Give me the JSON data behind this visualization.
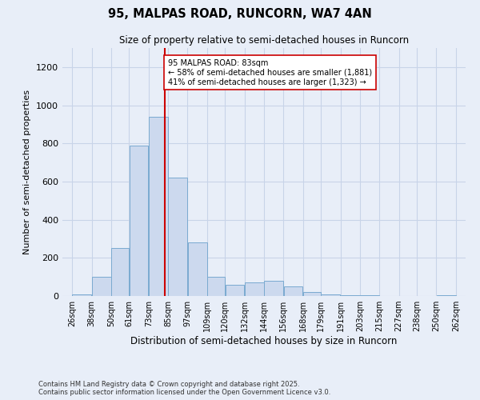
{
  "title1": "95, MALPAS ROAD, RUNCORN, WA7 4AN",
  "title2": "Size of property relative to semi-detached houses in Runcorn",
  "xlabel": "Distribution of semi-detached houses by size in Runcorn",
  "ylabel": "Number of semi-detached properties",
  "annotation_title": "95 MALPAS ROAD: 83sqm",
  "annotation_line1": "← 58% of semi-detached houses are smaller (1,881)",
  "annotation_line2": "41% of semi-detached houses are larger (1,323) →",
  "footnote1": "Contains HM Land Registry data © Crown copyright and database right 2025.",
  "footnote2": "Contains public sector information licensed under the Open Government Licence v3.0.",
  "property_size": 83,
  "bar_left_edges": [
    26,
    38,
    50,
    61,
    73,
    85,
    97,
    109,
    120,
    132,
    144,
    156,
    168,
    179,
    191,
    203,
    215,
    227,
    238,
    250
  ],
  "bar_widths": [
    12,
    12,
    11,
    12,
    12,
    12,
    12,
    11,
    12,
    12,
    12,
    12,
    11,
    12,
    12,
    12,
    12,
    11,
    12,
    12
  ],
  "bar_heights": [
    10,
    100,
    250,
    790,
    940,
    620,
    280,
    100,
    60,
    70,
    80,
    50,
    20,
    10,
    5,
    5,
    0,
    0,
    0,
    5
  ],
  "bin_labels": [
    "26sqm",
    "38sqm",
    "50sqm",
    "61sqm",
    "73sqm",
    "85sqm",
    "97sqm",
    "109sqm",
    "120sqm",
    "132sqm",
    "144sqm",
    "156sqm",
    "168sqm",
    "179sqm",
    "191sqm",
    "203sqm",
    "215sqm",
    "227sqm",
    "238sqm",
    "250sqm",
    "262sqm"
  ],
  "bar_color": "#ccd9ee",
  "bar_edge_color": "#7aaad0",
  "vline_x": 83,
  "vline_color": "#cc0000",
  "annotation_box_color": "#ffffff",
  "annotation_box_edge": "#cc0000",
  "grid_color": "#c8d4e8",
  "background_color": "#e8eef8",
  "ylim": [
    0,
    1300
  ],
  "yticks": [
    0,
    200,
    400,
    600,
    800,
    1000,
    1200
  ]
}
